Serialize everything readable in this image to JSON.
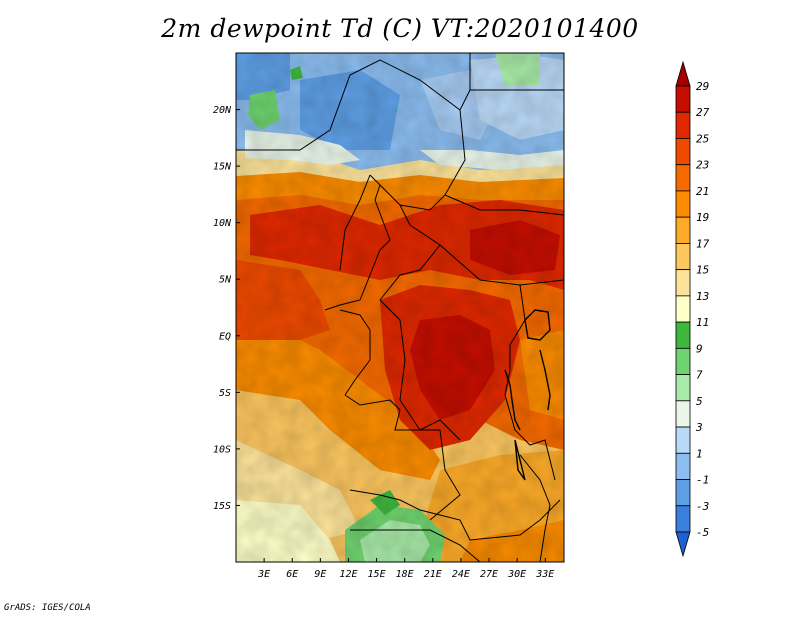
{
  "title": "2m dewpoint Td (C) VT:2020101400",
  "credit": "GrADS: IGES/COLA",
  "map": {
    "lat_labels": [
      "20N",
      "15N",
      "10N",
      "5N",
      "EQ",
      "5S",
      "10S",
      "15S"
    ],
    "lon_labels": [
      "3E",
      "6E",
      "9E",
      "12E",
      "15E",
      "18E",
      "21E",
      "24E",
      "27E",
      "30E",
      "33E"
    ],
    "lat_values": [
      20,
      15,
      10,
      5,
      0,
      -5,
      -10,
      -15
    ],
    "lon_values": [
      3,
      6,
      9,
      12,
      15,
      18,
      21,
      24,
      27,
      30,
      33
    ],
    "lat_range": [
      -20,
      25
    ],
    "lon_range": [
      0,
      35
    ]
  },
  "colorbar": {
    "labels": [
      "29",
      "27",
      "25",
      "23",
      "21",
      "19",
      "17",
      "15",
      "13",
      "11",
      "9",
      "7",
      "5",
      "3",
      "1",
      "-1",
      "-3",
      "-5"
    ],
    "colors": [
      "#a50000",
      "#c40e00",
      "#e02800",
      "#ee4a00",
      "#f56a00",
      "#fb8c00",
      "#fcaa28",
      "#fdc760",
      "#fde39a",
      "#ffffc8",
      "#3db83d",
      "#6fd36f",
      "#a8eaa8",
      "#eaf6ea",
      "#b9d9f7",
      "#8bbdf0",
      "#5e9fe6",
      "#3a7fdb",
      "#1f5fcf"
    ]
  }
}
